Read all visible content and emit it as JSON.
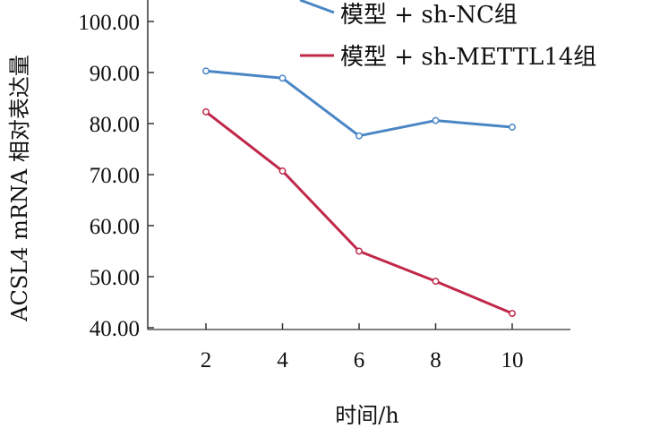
{
  "chart_data": {
    "type": "line",
    "title": "",
    "xlabel": "时间/h",
    "ylabel": "ACSL4 mRNA 相对表达量",
    "x": [
      2,
      4,
      6,
      8,
      10
    ],
    "x_ticks": [
      "2",
      "4",
      "6",
      "8",
      "10"
    ],
    "y_ticks": [
      "40.00",
      "50.00",
      "60.00",
      "70.00",
      "80.00",
      "90.00",
      "100.00"
    ],
    "y_tick_values": [
      40,
      50,
      60,
      70,
      80,
      90,
      100
    ],
    "xlim": [
      0.5,
      11.5
    ],
    "ylim": [
      40,
      100
    ],
    "grid": false,
    "legend_position": "top-right",
    "series": [
      {
        "name": "模型 + sh-NC组",
        "color": "#4a86c5",
        "values": [
          90.3,
          88.9,
          77.6,
          80.6,
          79.3
        ]
      },
      {
        "name": "模型 + sh-METTL14组",
        "color": "#c0284a",
        "values": [
          82.3,
          70.7,
          55.0,
          49.1,
          42.8
        ]
      }
    ]
  }
}
